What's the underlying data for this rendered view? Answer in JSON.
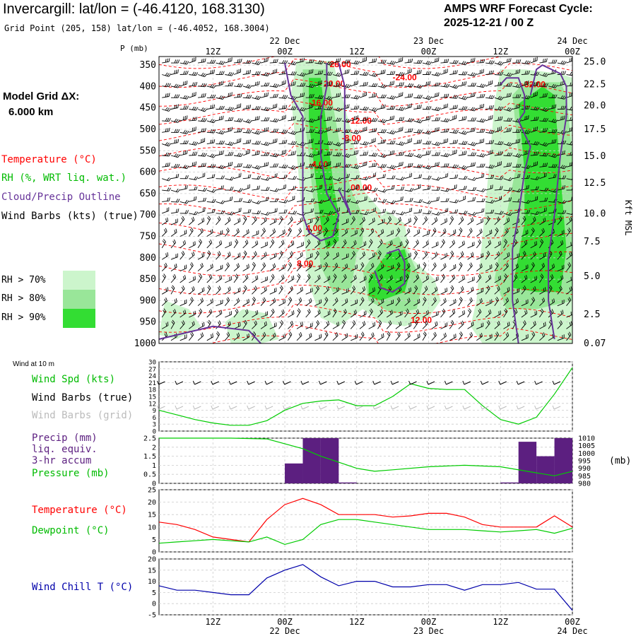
{
  "header": {
    "title": "Invercargill:  lat/lon = (-46.4120, 168.3130)",
    "grid_point": "Grid Point (205, 158) lat/lon = (-46.4052, 168.3004)",
    "cycle_label": "AMPS WRF Forecast Cycle:",
    "cycle_value": "2025-12-21 / 00  Z"
  },
  "time_axis": {
    "ticks": [
      {
        "t": 12,
        "label": "12Z",
        "date": ""
      },
      {
        "t": 24,
        "label": "00Z",
        "date": "22 Dec"
      },
      {
        "t": 36,
        "label": "12Z",
        "date": ""
      },
      {
        "t": 48,
        "label": "00Z",
        "date": "23 Dec"
      },
      {
        "t": 60,
        "label": "12Z",
        "date": ""
      },
      {
        "t": 72,
        "label": "00Z",
        "date": "24 Dec"
      }
    ],
    "range": [
      3,
      72
    ]
  },
  "left_legend": {
    "model_grid": "Model Grid ΔX:",
    "model_dx": "6.000 km",
    "temperature": "Temperature (°C)",
    "rh": "RH (%, WRT liq. wat.)",
    "cloud": "Cloud/Precip Outline",
    "wind_barbs": "Wind Barbs (kts) (true)",
    "rh70": "RH > 70%",
    "rh80": "RH > 80%",
    "rh90": "RH > 90%"
  },
  "colors": {
    "temperature": "#ff0000",
    "rh": "#00cc00",
    "cloud": "#663399",
    "rh70": "#ccf5cc",
    "rh80": "#99e699",
    "rh90": "#33dd33",
    "precip": "#5c1f80",
    "pressure": "#00cc00",
    "dewpoint": "#00cc00",
    "windchill": "#0000aa",
    "barb_grid": "#bbbbbb"
  },
  "panel1": {
    "p_unit": "P (mb)",
    "p_levels": [
      350,
      400,
      450,
      500,
      550,
      600,
      650,
      700,
      750,
      800,
      850,
      900,
      950,
      1000
    ],
    "kft_ticks": [
      {
        "p": 342,
        "label": "25.0"
      },
      {
        "p": 395,
        "label": "22.5"
      },
      {
        "p": 445,
        "label": "20.0"
      },
      {
        "p": 500,
        "label": "17.5"
      },
      {
        "p": 563,
        "label": "15.0"
      },
      {
        "p": 625,
        "label": "12.5"
      },
      {
        "p": 697,
        "label": "10.0"
      },
      {
        "p": 762,
        "label": "7.5"
      },
      {
        "p": 843,
        "label": "5.0"
      },
      {
        "p": 932,
        "label": "2.5"
      },
      {
        "p": 1000,
        "label": "0.07"
      }
    ],
    "kft_label": "Kft MSL",
    "temp_labels": [
      "28.00",
      "20.00",
      "-24.00",
      "-32.00",
      "-16.00",
      "-12.00",
      "-8.00",
      "-4.00",
      "00.00",
      "4.00",
      "8.00",
      "12.00"
    ]
  },
  "panel2": {
    "header": "Wind at 10 m",
    "label_spd": "Wind Spd (kts)",
    "label_barbs_true": "Wind Barbs (true)",
    "label_barbs_grid": "Wind Barbs (grid)",
    "yticks": [
      "30",
      "27",
      "24",
      "21",
      "18",
      "15",
      "12",
      "9",
      "6",
      "3",
      "0"
    ]
  },
  "panel3": {
    "label_precip": "Precip (mm)",
    "label_liq": "liq. equiv.",
    "label_accum": "3-hr accum",
    "label_pressure": "Pressure (mb)",
    "left_ticks": [
      "2.5",
      "2",
      "1.5",
      "1",
      "0.5",
      "0"
    ],
    "right_ticks": [
      "1010",
      "1005",
      "1000",
      "995",
      "990",
      "985",
      "980"
    ],
    "right_unit": "(mb)"
  },
  "panel4": {
    "label_temp": "Temperature (°C)",
    "label_dew": "Dewpoint (°C)",
    "yticks": [
      "25",
      "20",
      "15",
      "10",
      "5",
      "0"
    ]
  },
  "panel5": {
    "label_wc": "Wind Chill T (°C)",
    "yticks": [
      "20",
      "15",
      "10",
      "5",
      "0",
      "-5"
    ]
  },
  "chart_data": [
    {
      "type": "line",
      "title": "Wind Spd (kts)",
      "x": [
        3,
        6,
        9,
        12,
        15,
        18,
        21,
        24,
        27,
        30,
        33,
        36,
        39,
        42,
        45,
        48,
        51,
        54,
        57,
        60,
        63,
        66,
        69,
        72
      ],
      "series": [
        {
          "name": "Wind Spd (kts)",
          "values": [
            9,
            7,
            5,
            3.5,
            2.5,
            2.5,
            4.5,
            9,
            12,
            13,
            13.5,
            11,
            11,
            15,
            20.5,
            18.5,
            18,
            18,
            11,
            5,
            3,
            6,
            16,
            27.5
          ]
        }
      ],
      "ylim": [
        0,
        30
      ]
    },
    {
      "type": "bar",
      "title": "Precip (mm) liq. equiv. 3-hr accum",
      "x": [
        27,
        30,
        33,
        36,
        63,
        66,
        69,
        72
      ],
      "values": [
        1.1,
        2.5,
        2.5,
        0.05,
        0.05,
        2.3,
        1.5,
        2.5
      ],
      "ylim": [
        0,
        2.5
      ]
    },
    {
      "type": "line",
      "title": "Pressure (mb)",
      "x": [
        3,
        9,
        15,
        21,
        27,
        30,
        33,
        36,
        39,
        42,
        48,
        54,
        60,
        66,
        69,
        72
      ],
      "series": [
        {
          "name": "Pressure (mb)",
          "values": [
            1010,
            1010,
            1010,
            1009.5,
            1003,
            998,
            994,
            990,
            988,
            989,
            991,
            992,
            991,
            987,
            985,
            988
          ]
        }
      ],
      "ylim": [
        980,
        1010
      ]
    },
    {
      "type": "line",
      "title": "Temperature / Dewpoint",
      "x": [
        3,
        6,
        9,
        12,
        15,
        18,
        21,
        24,
        27,
        30,
        33,
        36,
        39,
        42,
        45,
        48,
        51,
        54,
        57,
        60,
        63,
        66,
        69,
        72
      ],
      "series": [
        {
          "name": "Temperature (°C)",
          "values": [
            12,
            11,
            9,
            6,
            5,
            4,
            13,
            19,
            21.5,
            19,
            15,
            15,
            15,
            14,
            14.5,
            15.5,
            15.5,
            14,
            11,
            10,
            10,
            10,
            14.5,
            10
          ]
        },
        {
          "name": "Dewpoint (°C)",
          "values": [
            3.5,
            4,
            4.5,
            5,
            4.5,
            4,
            6,
            3,
            5,
            11,
            13,
            13,
            12,
            11,
            10,
            9,
            9,
            9,
            8.5,
            8,
            8.5,
            9,
            7.5,
            9.5
          ]
        }
      ],
      "ylim": [
        0,
        25
      ]
    },
    {
      "type": "line",
      "title": "Wind Chill T (°C)",
      "x": [
        3,
        6,
        9,
        12,
        15,
        18,
        21,
        24,
        27,
        30,
        33,
        36,
        39,
        42,
        45,
        48,
        51,
        54,
        57,
        60,
        63,
        66,
        69,
        72
      ],
      "series": [
        {
          "name": "Wind Chill T (°C)",
          "values": [
            8,
            6,
            6,
            5,
            4,
            4,
            11.5,
            15,
            17.5,
            12,
            8,
            10,
            10,
            7.5,
            7.5,
            8.5,
            8.5,
            6,
            8.5,
            8.5,
            9.5,
            6.5,
            6.5,
            -3
          ]
        }
      ],
      "ylim": [
        -5,
        20
      ]
    }
  ]
}
